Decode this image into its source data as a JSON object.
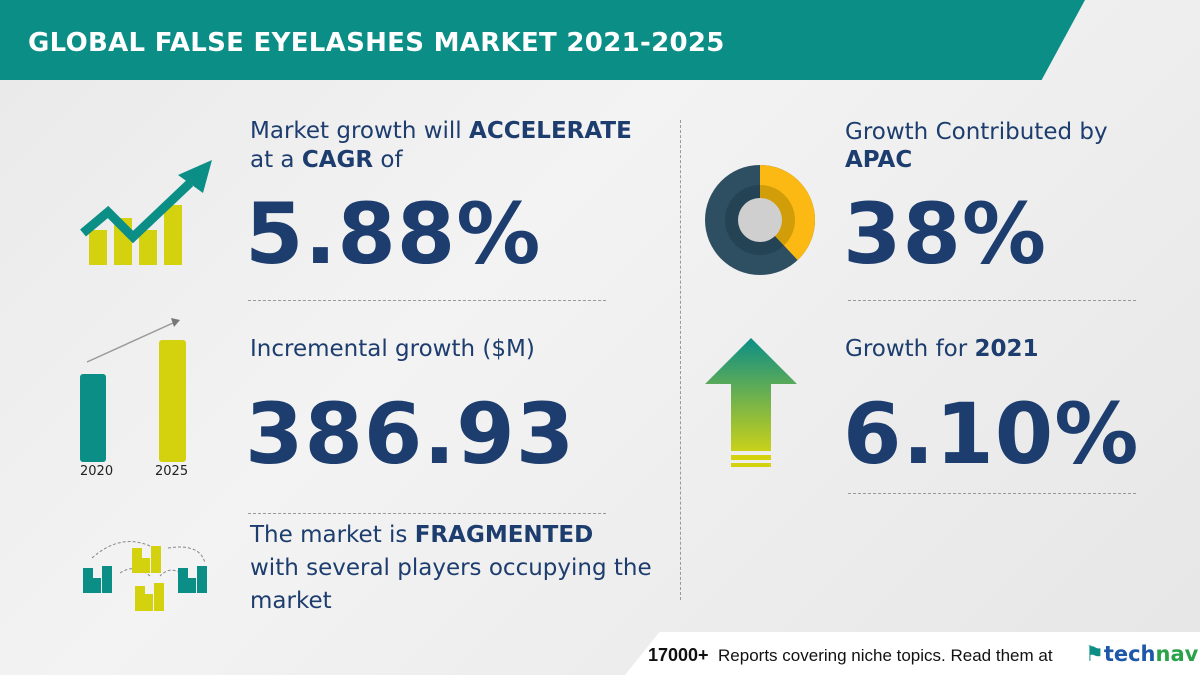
{
  "header": {
    "title": "GLOBAL FALSE EYELASHES MARKET 2021-2025"
  },
  "cagr": {
    "line1_pre": "Market growth will ",
    "line1_bold": "ACCELERATE",
    "line2_pre": "at a ",
    "line2_bold": "CAGR",
    "line2_post": " of",
    "value": "5.88%"
  },
  "incremental": {
    "label": "Incremental growth ($M)",
    "value": "386.93",
    "years": [
      "2020",
      "2025"
    ]
  },
  "market": {
    "line1_pre": "The market is ",
    "line1_bold": "FRAGMENTED",
    "line2": "with several players occupying the",
    "line3": "market"
  },
  "region": {
    "label": "Growth Contributed by",
    "region": "APAC",
    "value": "38%",
    "share_percent": 38
  },
  "yoy": {
    "label": "Growth for ",
    "year": "2021",
    "value": "6.10%"
  },
  "footer": {
    "count": "17000+",
    "text": "Reports covering niche topics. Read them at",
    "logo_a": "tech",
    "logo_b": "navio"
  },
  "colors": {
    "teal": "#0b8e86",
    "navy": "#1d3d6e",
    "lime": "#d4d10f",
    "yellow": "#fdb913",
    "slate": "#2e4f62"
  }
}
